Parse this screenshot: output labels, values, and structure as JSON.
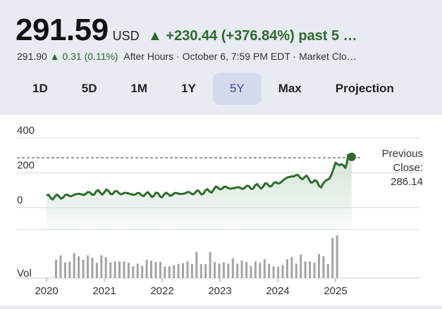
{
  "quote": {
    "price": "291.59",
    "currency": "USD",
    "change_arrow": "▲",
    "change": "+230.44 (+376.84%) past 5 …",
    "after_price": "291.90",
    "after_arrow": "▲",
    "after_change": "0.31 (0.11%)",
    "after_label": "After Hours · October 6, 7:59 PM EDT · Market Clo…"
  },
  "tabs": [
    {
      "label": "1D"
    },
    {
      "label": "5D"
    },
    {
      "label": "1M"
    },
    {
      "label": "1Y"
    },
    {
      "label": "5Y",
      "active": true
    },
    {
      "label": "Max"
    },
    {
      "label": "Projection"
    }
  ],
  "colors": {
    "line": "#2f6b2f",
    "fill": "#cfe3d2",
    "volume": "#a4a4a4",
    "accent": "#3a4aa6"
  },
  "chart_data": {
    "type": "area",
    "y_ticks": [
      "400",
      "200",
      "0"
    ],
    "ylim": [
      0,
      400
    ],
    "volume_label": "Vol",
    "x_ticks": [
      "2020",
      "2021",
      "2022",
      "2023",
      "2024",
      "2025"
    ],
    "previous_close_label": [
      "Previous",
      "Close:",
      "286.14"
    ],
    "previous_close": 286.14,
    "last_value": 291.59,
    "series": [
      {
        "x": [
          2020.0,
          2020.25,
          2020.5,
          2020.75,
          2021.0,
          2021.25,
          2021.5,
          2021.75,
          2022.0,
          2022.25,
          2022.5,
          2022.75,
          2023.0,
          2023.25,
          2023.5,
          2023.75,
          2024.0,
          2024.25,
          2024.5,
          2024.75,
          2024.9,
          2025.0,
          2025.1,
          2025.17,
          2025.22,
          2025.28
        ],
        "values": [
          61,
          62,
          75,
          82,
          91,
          85,
          78,
          76,
          72,
          80,
          85,
          90,
          115,
          112,
          117,
          125,
          140,
          185,
          170,
          128,
          167,
          255,
          245,
          230,
          290,
          291.59
        ]
      }
    ],
    "volume": [
      42,
      52,
      36,
      38,
      57,
      50,
      42,
      52,
      47,
      35,
      52,
      48,
      36,
      38,
      38,
      38,
      35,
      27,
      33,
      28,
      42,
      40,
      37,
      37,
      27,
      27,
      29,
      32,
      34,
      38,
      32,
      60,
      32,
      32,
      60,
      37,
      33,
      36,
      33,
      45,
      33,
      40,
      37,
      28,
      38,
      35,
      43,
      33,
      27,
      26,
      30,
      43,
      48,
      33,
      54,
      38,
      38,
      35,
      55,
      50,
      32,
      92,
      98
    ]
  }
}
